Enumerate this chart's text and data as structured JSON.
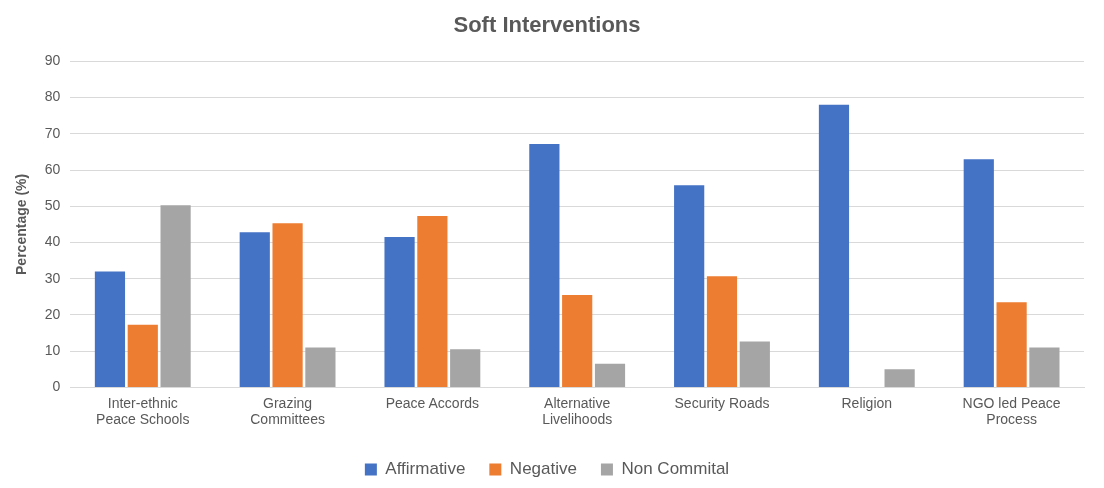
{
  "chart_data": {
    "type": "bar",
    "title": "Soft Interventions",
    "ylabel": "Percentage (%)",
    "categories": [
      "Inter-ethnic Peace Schools",
      "Grazing Committees",
      "Peace Accords",
      "Alternative Livelihoods",
      "Security Roads",
      "Religion",
      "NGO led Peace Process"
    ],
    "series": [
      {
        "name": "Affirmative",
        "color": "#4472c4",
        "values": [
          32,
          42.8,
          41.5,
          67.2,
          55.8,
          78,
          63
        ]
      },
      {
        "name": "Negative",
        "color": "#ed7d31",
        "values": [
          17.3,
          45.3,
          47.3,
          25.5,
          30.7,
          0,
          23.5
        ]
      },
      {
        "name": "Non Commital",
        "color": "#a5a5a5",
        "values": [
          50.3,
          11,
          10.5,
          6.5,
          12.7,
          5,
          11
        ]
      }
    ],
    "ylim": [
      0,
      90
    ],
    "yticks": [
      0,
      10,
      20,
      30,
      40,
      50,
      60,
      70,
      80,
      90
    ],
    "grid": "y",
    "legend": "bottom"
  }
}
